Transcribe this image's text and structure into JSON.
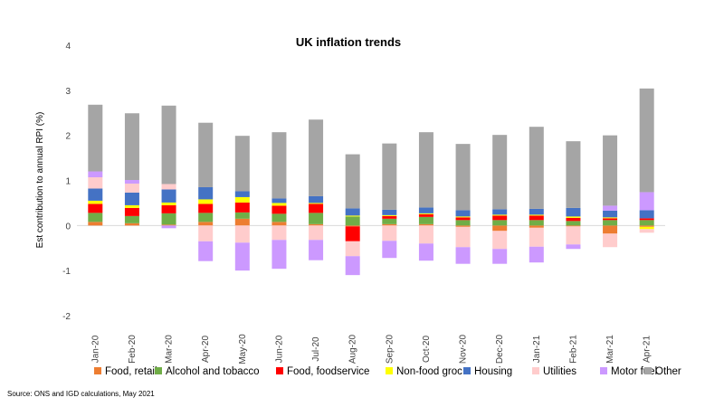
{
  "chart_data": {
    "type": "stacked-bar",
    "title": "UK inflation  trends",
    "ylabel": "Est contribution to annual RPI (%)",
    "xlabel": "",
    "ylim": [
      -2,
      4
    ],
    "yticks": [
      "-2",
      "-1",
      "0",
      "1",
      "2",
      "3",
      "4"
    ],
    "ytick_values": [
      -2,
      -1,
      0,
      1,
      2,
      3,
      4
    ],
    "grid": false,
    "legend_position": "bottom",
    "categories": [
      "Jan-20",
      "Feb-20",
      "Mar-20",
      "Apr-20",
      "May-20",
      "Jun-20",
      "Jul-20",
      "Aug-20",
      "Sep-20",
      "Oct-20",
      "Nov-20",
      "Dec-20",
      "Jan-21",
      "Feb-21",
      "Mar-21",
      "Apr-21"
    ],
    "series": [
      {
        "name": "Food, retail",
        "color": "#ED7D31",
        "values": [
          0.08,
          0.05,
          0.02,
          0.08,
          0.15,
          0.08,
          0.03,
          -0.02,
          0.03,
          0.03,
          -0.03,
          -0.12,
          -0.05,
          -0.02,
          -0.18,
          -0.03
        ]
      },
      {
        "name": "Alcohol and tobacco",
        "color": "#70AD47",
        "values": [
          0.2,
          0.16,
          0.25,
          0.2,
          0.14,
          0.18,
          0.25,
          0.2,
          0.12,
          0.16,
          0.12,
          0.12,
          0.12,
          0.1,
          0.12,
          0.12
        ]
      },
      {
        "name": "Food, foodservice",
        "color": "#FF0000",
        "values": [
          0.2,
          0.18,
          0.18,
          0.2,
          0.22,
          0.18,
          0.2,
          -0.33,
          0.06,
          0.06,
          0.06,
          0.1,
          0.1,
          0.07,
          0.04,
          0.04
        ]
      },
      {
        "name": "Non-food groc",
        "color": "#FFFF00",
        "values": [
          0.07,
          0.06,
          0.06,
          0.1,
          0.12,
          0.06,
          0.02,
          0.02,
          0.02,
          0.02,
          0.02,
          0.02,
          0.02,
          0.03,
          0.02,
          -0.05
        ]
      },
      {
        "name": "Housing",
        "color": "#4472C4",
        "values": [
          0.27,
          0.28,
          0.29,
          0.27,
          0.13,
          0.1,
          0.15,
          0.16,
          0.12,
          0.13,
          0.14,
          0.12,
          0.13,
          0.19,
          0.15,
          0.18
        ]
      },
      {
        "name": "Utilities",
        "color": "#FFCCCC",
        "values": [
          0.25,
          0.2,
          0.12,
          -0.35,
          -0.38,
          -0.32,
          -0.32,
          -0.33,
          -0.34,
          -0.4,
          -0.45,
          -0.4,
          -0.42,
          -0.4,
          -0.3,
          -0.08
        ]
      },
      {
        "name": "Motor fuel",
        "color": "#CC99FF",
        "values": [
          0.13,
          0.08,
          -0.06,
          -0.44,
          -0.62,
          -0.64,
          -0.45,
          -0.42,
          -0.38,
          -0.38,
          -0.37,
          -0.33,
          -0.35,
          -0.1,
          0.11,
          0.4
        ]
      },
      {
        "name": "Other",
        "color": "#A5A5A5",
        "values": [
          1.48,
          1.48,
          1.74,
          1.43,
          1.23,
          1.47,
          1.7,
          1.2,
          1.47,
          1.67,
          1.47,
          1.65,
          1.82,
          1.48,
          1.56,
          2.3
        ]
      }
    ]
  },
  "source": "Source: ONS and IGD calculations, May 2021"
}
